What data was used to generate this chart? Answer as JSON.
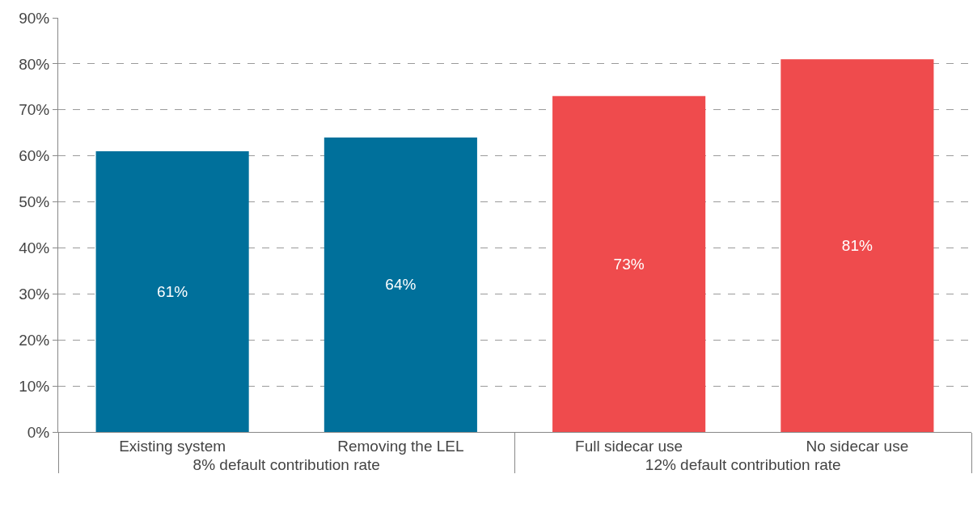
{
  "chart_data": {
    "type": "bar",
    "categories": [
      "Existing system",
      "Removing the LEL",
      "Full sidecar use",
      "No sidecar use"
    ],
    "values": [
      61,
      64,
      73,
      81
    ],
    "colors": [
      "#00709b",
      "#00709b",
      "#ef4b4d",
      "#ef4b4d"
    ],
    "value_labels": [
      "61%",
      "64%",
      "73%",
      "81%"
    ],
    "annotations": [
      "8% default contribution rate",
      "12% default contribution rate"
    ],
    "ylim": [
      0,
      90
    ],
    "yticks": [
      {
        "value": 0,
        "label": "0%"
      },
      {
        "value": 10,
        "label": "10%"
      },
      {
        "value": 20,
        "label": "20%"
      },
      {
        "value": 30,
        "label": "30%"
      },
      {
        "value": 40,
        "label": "40%"
      },
      {
        "value": 50,
        "label": "50%"
      },
      {
        "value": 60,
        "label": "60%"
      },
      {
        "value": 70,
        "label": "70%"
      },
      {
        "value": 80,
        "label": "80%"
      },
      {
        "value": 90,
        "label": "90%"
      }
    ],
    "grid": "y"
  }
}
